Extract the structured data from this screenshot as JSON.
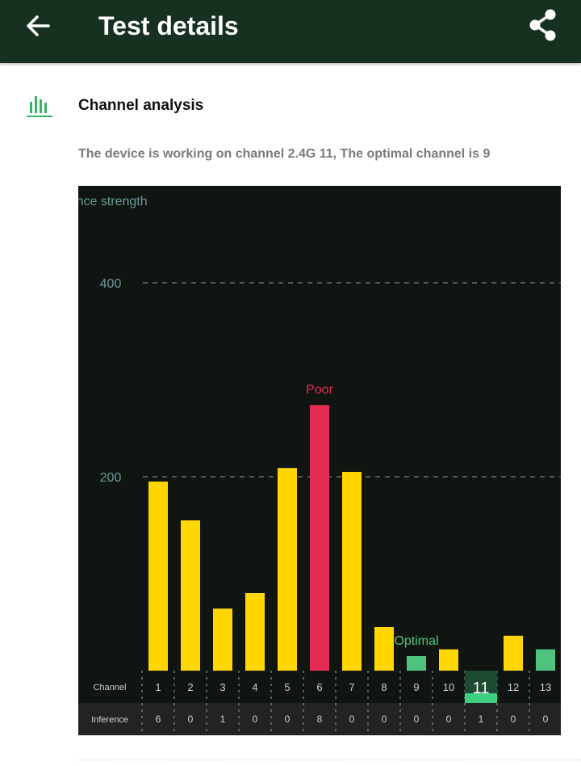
{
  "header": {
    "title": "Test details",
    "back_icon": "arrow-left-icon",
    "share_icon": "share-icon",
    "background": "#173120"
  },
  "section": {
    "icon": "bar-chart-icon",
    "title": "Channel analysis",
    "description": "The device is working on channel 2.4G 11, The optimal channel is 9"
  },
  "chart_data": {
    "type": "bar",
    "ylabel": "Interference strength",
    "ylim": [
      0,
      460
    ],
    "yticks": [
      200,
      400
    ],
    "grid": true,
    "categories": [
      "1",
      "2",
      "3",
      "4",
      "5",
      "6",
      "7",
      "8",
      "9",
      "10",
      "11",
      "12",
      "13"
    ],
    "values": [
      195,
      155,
      64,
      80,
      209,
      274,
      205,
      45,
      15,
      22,
      0,
      36,
      22
    ],
    "status": [
      "normal",
      "normal",
      "normal",
      "normal",
      "normal",
      "poor",
      "normal",
      "normal",
      "optimal",
      "normal",
      "current",
      "normal",
      "optimal"
    ],
    "annotations": {
      "poor_label": "Poor",
      "optimal_label": "Optimal"
    },
    "current_channel": "11",
    "row_labels": {
      "channel": "Channel",
      "interference": "Inference"
    },
    "interference_counts": [
      "6",
      "0",
      "1",
      "0",
      "0",
      "8",
      "0",
      "0",
      "0",
      "0",
      "1",
      "0",
      "0"
    ],
    "colors": {
      "normal": "#ffd600",
      "poor": "#e32b53",
      "optimal": "#4fc47f",
      "grid": "#7c7c7c",
      "axis_text": "#6b9a9b"
    }
  }
}
